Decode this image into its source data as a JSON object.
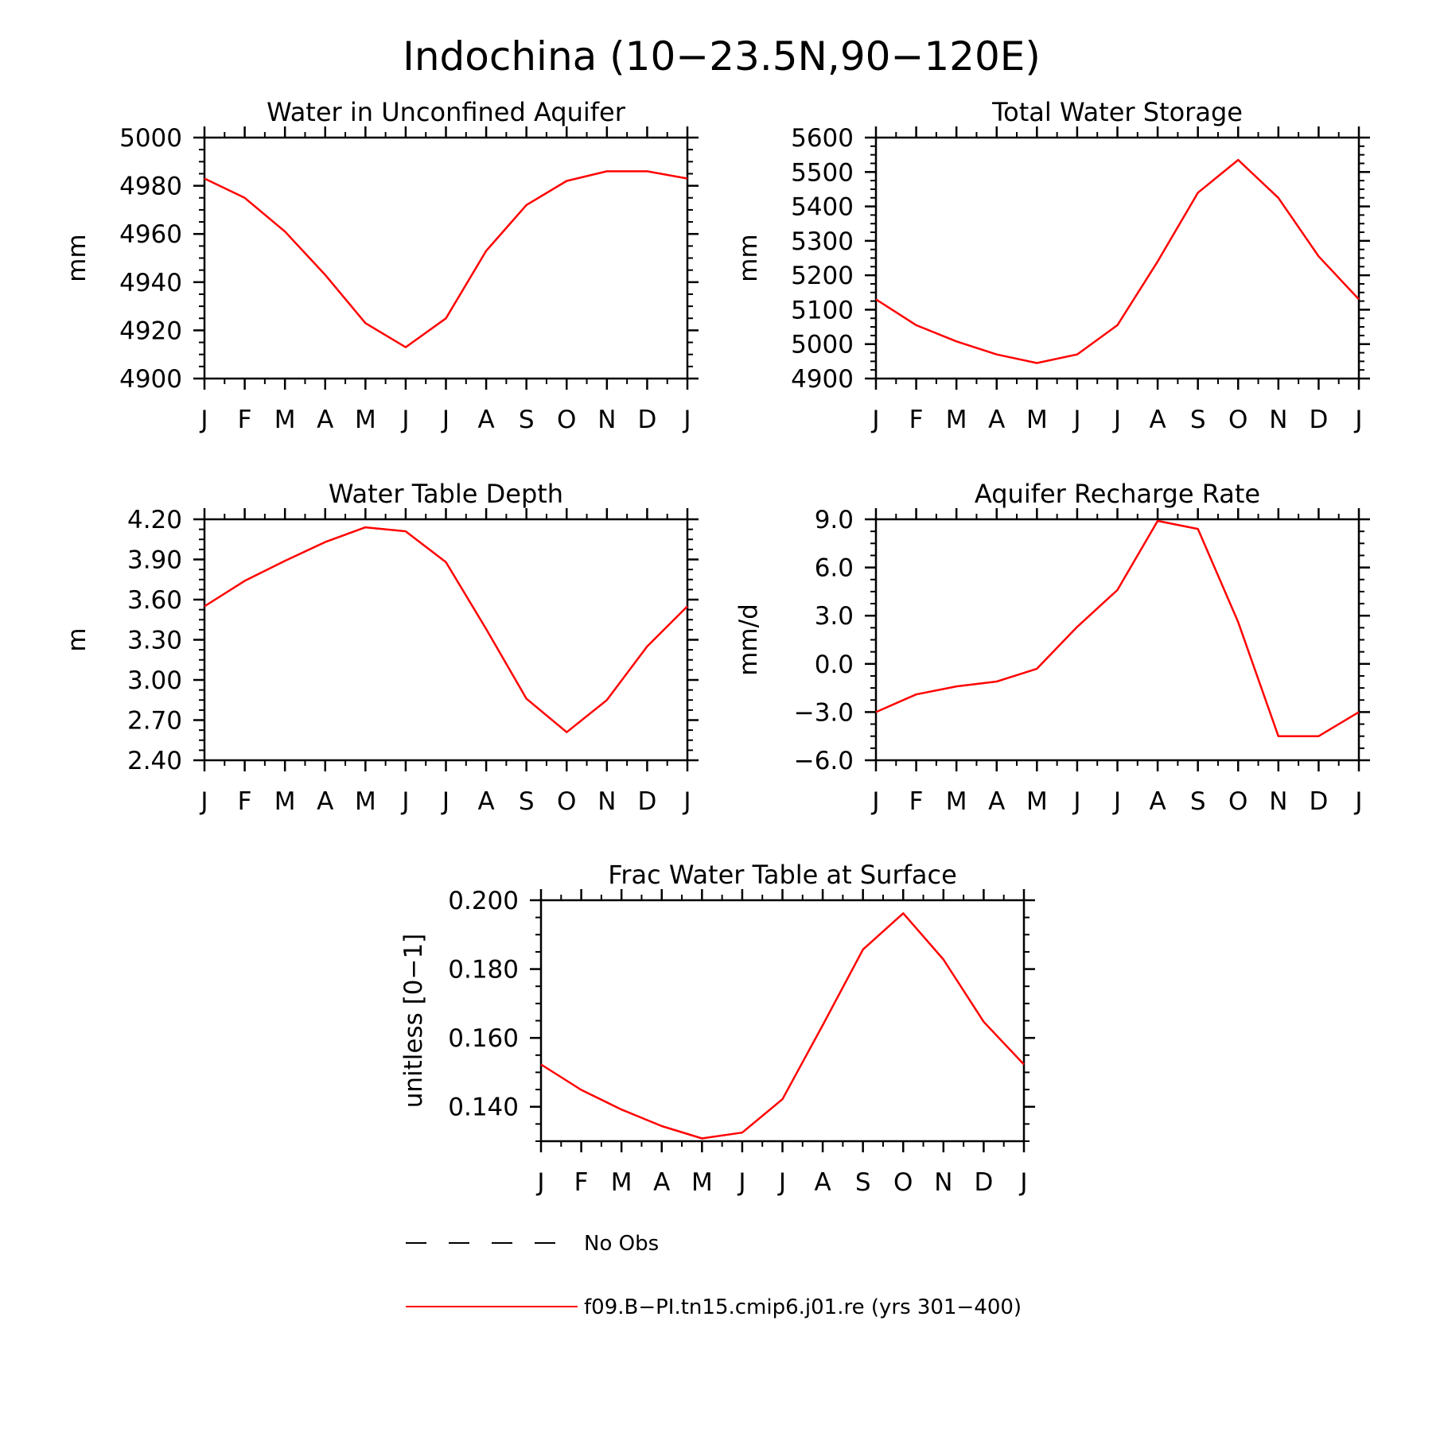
{
  "figure": {
    "title": "Indochina (10−23.5N,90−120E)",
    "line_color": "#ff0000",
    "legend": {
      "obs_label": "No Obs",
      "model_label": "f09.B−PI.tn15.cmip6.j01.re (yrs 301−400)"
    }
  },
  "chart_data": [
    {
      "type": "line",
      "title": "Water in Unconfined Aquifer",
      "ylabel": "mm",
      "xlabel": "",
      "categories": [
        "J",
        "F",
        "M",
        "A",
        "M",
        "J",
        "J",
        "A",
        "S",
        "O",
        "N",
        "D",
        "J"
      ],
      "values": [
        4983,
        4975,
        4961,
        4943,
        4923,
        4913,
        4925,
        4953,
        4972,
        4982,
        4986,
        4986,
        4983
      ],
      "ylim": [
        4900,
        5000
      ],
      "yticks": [
        "4900",
        "4920",
        "4940",
        "4960",
        "4980",
        "5000"
      ]
    },
    {
      "type": "line",
      "title": "Total Water Storage",
      "ylabel": "mm",
      "xlabel": "",
      "categories": [
        "J",
        "F",
        "M",
        "A",
        "M",
        "J",
        "J",
        "A",
        "S",
        "O",
        "N",
        "D",
        "J"
      ],
      "values": [
        5130,
        5055,
        5008,
        4970,
        4945,
        4970,
        5055,
        5240,
        5440,
        5535,
        5425,
        5255,
        5130
      ],
      "ylim": [
        4900,
        5600
      ],
      "yticks": [
        "4900",
        "5000",
        "5100",
        "5200",
        "5300",
        "5400",
        "5500",
        "5600"
      ]
    },
    {
      "type": "line",
      "title": "Water Table Depth",
      "ylabel": "m",
      "xlabel": "",
      "categories": [
        "J",
        "F",
        "M",
        "A",
        "M",
        "J",
        "J",
        "A",
        "S",
        "O",
        "N",
        "D",
        "J"
      ],
      "values": [
        3.55,
        3.74,
        3.89,
        4.03,
        4.14,
        4.11,
        3.88,
        3.38,
        2.86,
        2.61,
        2.85,
        3.25,
        3.55
      ],
      "ylim": [
        2.4,
        4.2
      ],
      "yticks": [
        "2.40",
        "2.70",
        "3.00",
        "3.30",
        "3.60",
        "3.90",
        "4.20"
      ]
    },
    {
      "type": "line",
      "title": "Aquifer Recharge Rate",
      "ylabel": "mm/d",
      "xlabel": "",
      "categories": [
        "J",
        "F",
        "M",
        "A",
        "M",
        "J",
        "J",
        "A",
        "S",
        "O",
        "N",
        "D",
        "J"
      ],
      "values": [
        -3.0,
        -1.9,
        -1.4,
        -1.1,
        -0.3,
        2.3,
        4.6,
        8.9,
        8.4,
        2.6,
        -4.5,
        -4.5,
        -3.0
      ],
      "ylim": [
        -6.0,
        9.0
      ],
      "yticks": [
        "−6.0",
        "−3.0",
        "0.0",
        "3.0",
        "6.0",
        "9.0"
      ]
    },
    {
      "type": "line",
      "title": "Frac Water Table at Surface",
      "ylabel": "unitless [0−1]",
      "xlabel": "",
      "categories": [
        "J",
        "F",
        "M",
        "A",
        "M",
        "J",
        "J",
        "A",
        "S",
        "O",
        "N",
        "D",
        "J"
      ],
      "values": [
        0.1523,
        0.1449,
        0.1392,
        0.1344,
        0.1308,
        0.1325,
        0.1422,
        0.1637,
        0.1857,
        0.1962,
        0.1828,
        0.1647,
        0.1523
      ],
      "ylim": [
        0.13,
        0.2
      ],
      "yticks": [
        "0.140",
        "0.160",
        "0.180",
        "0.200"
      ]
    }
  ]
}
